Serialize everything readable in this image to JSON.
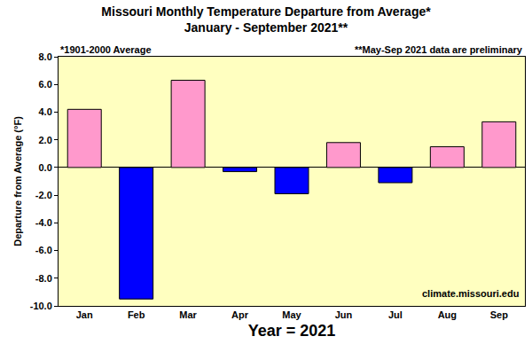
{
  "chart_data": {
    "type": "bar",
    "title": "Missouri Monthly Temperature Departure from Average*",
    "subtitle": "January - September 2021**",
    "x_label": "Year = 2021",
    "y_label": "Departure from Average (°F)",
    "annotations": [
      "*1901-2000 Average",
      "**May-Sep 2021 data are preliminary",
      "climate.missouri.edu"
    ],
    "categories": [
      "Jan",
      "Feb",
      "Mar",
      "Apr",
      "May",
      "Jun",
      "Jul",
      "Aug",
      "Sep"
    ],
    "values": [
      4.2,
      -9.5,
      6.3,
      -0.3,
      -1.9,
      1.8,
      -1.1,
      1.5,
      3.3
    ],
    "colors": [
      "#ff99cc",
      "#0000ff",
      "#ff99cc",
      "#0000ff",
      "#0000ff",
      "#ff99cc",
      "#0000ff",
      "#ff99cc",
      "#ff99cc"
    ],
    "ylim": [
      -10,
      8
    ],
    "yticks": [
      {
        "value": -10,
        "label": "-10.0"
      },
      {
        "value": -8,
        "label": "-8.0"
      },
      {
        "value": -6,
        "label": "-6.0"
      },
      {
        "value": -4,
        "label": "-4.0"
      },
      {
        "value": -2,
        "label": "-2.0"
      },
      {
        "value": 0,
        "label": "0.0"
      },
      {
        "value": 2,
        "label": "2.0"
      },
      {
        "value": 4,
        "label": "4.0"
      },
      {
        "value": 6,
        "label": "6.0"
      },
      {
        "value": 8,
        "label": "8.0"
      }
    ],
    "grid": false
  }
}
